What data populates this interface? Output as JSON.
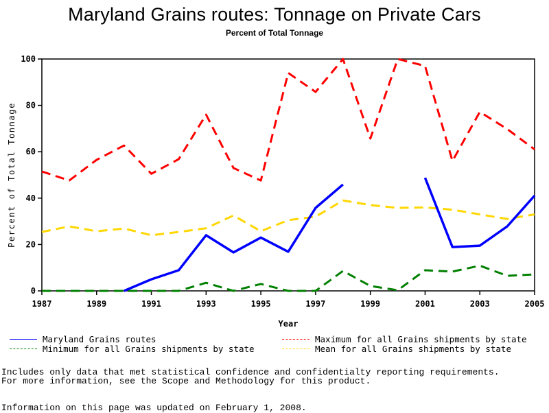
{
  "chart_data": {
    "type": "line",
    "title": "Maryland Grains routes: Tonnage on Private Cars",
    "subtitle": "Percent of Total Tonnage",
    "xlabel": "Year",
    "ylabel": "Percent of Total Tonnage",
    "xlim": [
      1987,
      2005
    ],
    "ylim": [
      0,
      100
    ],
    "xticks": [
      1987,
      1989,
      1991,
      1993,
      1995,
      1997,
      1999,
      2001,
      2003,
      2005
    ],
    "yticks": [
      0,
      20,
      40,
      60,
      80,
      100
    ],
    "grid": false,
    "legend_position": "bottom",
    "x": [
      1987,
      1988,
      1989,
      1990,
      1991,
      1992,
      1993,
      1994,
      1995,
      1996,
      1997,
      1998,
      1999,
      2000,
      2001,
      2002,
      2003,
      2004,
      2005
    ],
    "series": [
      {
        "name": "Maryland Grains routes",
        "color": "#0000ff",
        "style": "solid",
        "values": [
          null,
          null,
          null,
          0,
          5,
          8.9,
          24,
          16.6,
          23,
          16.9,
          35.8,
          45.9,
          null,
          null,
          48.8,
          18.9,
          19.5,
          27.8,
          41.1
        ]
      },
      {
        "name": "Maximum for all Grains shipments by state",
        "color": "#ff0000",
        "style": "dashed",
        "values": [
          51.5,
          47.6,
          56.5,
          62.7,
          50.5,
          56.8,
          76,
          53,
          47.6,
          94,
          85.8,
          100,
          65.7,
          100,
          97,
          56,
          77.2,
          69.8,
          61
        ]
      },
      {
        "name": "Minimum for all Grains shipments by state",
        "color": "#008000",
        "style": "dashed",
        "values": [
          0,
          0,
          0,
          0,
          0,
          0,
          3.5,
          0,
          3,
          0,
          0,
          8.6,
          2.1,
          0.3,
          8.9,
          8.3,
          10.9,
          6.5,
          7.1
        ]
      },
      {
        "name": "Mean for all Grains shipments by state",
        "color": "#ffd700",
        "style": "dashed",
        "values": [
          25.4,
          27.8,
          25.7,
          26.9,
          24,
          25.4,
          27,
          32.5,
          25.7,
          30.5,
          32,
          39,
          37,
          35.8,
          36,
          35,
          33,
          31,
          33
        ]
      }
    ]
  },
  "legend": [
    {
      "label": "Maryland Grains routes",
      "series": 0
    },
    {
      "label": "Maximum for all Grains shipments by state",
      "series": 1
    },
    {
      "label": "Minimum for all Grains shipments by state",
      "series": 2
    },
    {
      "label": "Mean for all Grains shipments by state",
      "series": 3
    }
  ],
  "footer": {
    "note_line1": "Includes only data that met statistical confidence and confidentialty reporting requirements.",
    "note_line2": "For more information, see the Scope and Methodology for this product.",
    "updated": "Information on this page was updated on February 1, 2008."
  }
}
